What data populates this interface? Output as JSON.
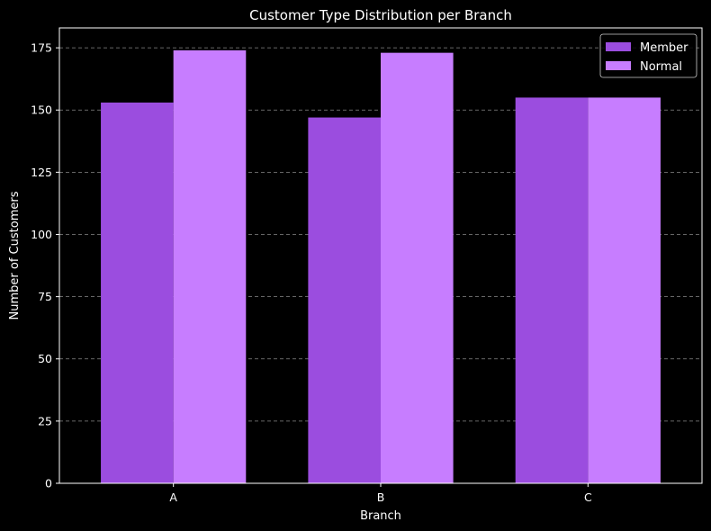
{
  "chart_data": {
    "type": "bar",
    "title": "Customer Type Distribution per Branch",
    "xlabel": "Branch",
    "ylabel": "Number of Customers",
    "categories": [
      "A",
      "B",
      "C"
    ],
    "series": [
      {
        "name": "Member",
        "values": [
          153,
          147,
          155
        ],
        "color": "#9b4ddf"
      },
      {
        "name": "Normal",
        "values": [
          174,
          173,
          155
        ],
        "color": "#c77dff"
      }
    ],
    "ylim": [
      0,
      183
    ],
    "yticks": [
      0,
      25,
      50,
      75,
      100,
      125,
      150,
      175
    ],
    "grid": true,
    "legend_position": "top-right",
    "colors": {
      "background": "#000000",
      "text": "#ffffff",
      "grid": "#888888"
    }
  }
}
